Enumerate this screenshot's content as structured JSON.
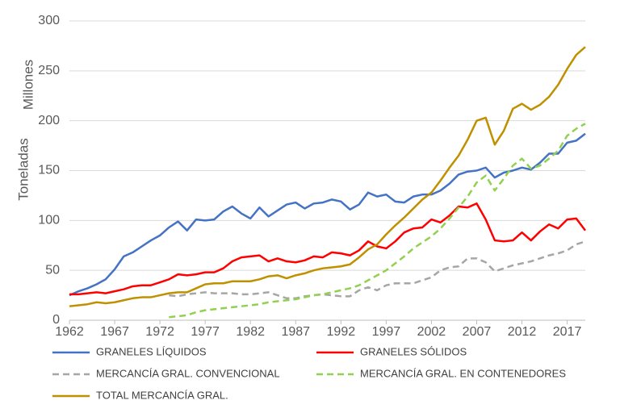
{
  "chart_data": {
    "type": "line",
    "y_label": "Toneladas",
    "y_unit": "Millones",
    "x": [
      1962,
      1963,
      1964,
      1965,
      1966,
      1967,
      1968,
      1969,
      1970,
      1971,
      1972,
      1973,
      1974,
      1975,
      1976,
      1977,
      1978,
      1979,
      1980,
      1981,
      1982,
      1983,
      1984,
      1985,
      1986,
      1987,
      1988,
      1989,
      1990,
      1991,
      1992,
      1993,
      1994,
      1995,
      1996,
      1997,
      1998,
      1999,
      2000,
      2001,
      2002,
      2003,
      2004,
      2005,
      2006,
      2007,
      2008,
      2009,
      2010,
      2011,
      2012,
      2013,
      2014,
      2015,
      2016,
      2017,
      2018,
      2019
    ],
    "xlim": [
      1962,
      2019
    ],
    "xticks": [
      1962,
      1967,
      1972,
      1977,
      1982,
      1987,
      1992,
      1997,
      2002,
      2007,
      2012,
      2017
    ],
    "ylim": [
      0,
      300
    ],
    "yticks": [
      0,
      50,
      100,
      150,
      200,
      250,
      300
    ],
    "grid": true,
    "series": [
      {
        "name": "GRANELES LÍQUIDOS",
        "color": "#4472c4",
        "dashed": false,
        "values": [
          25,
          29,
          32,
          36,
          41,
          51,
          64,
          68,
          74,
          80,
          85,
          93,
          99,
          90,
          101,
          100,
          101,
          109,
          114,
          107,
          102,
          113,
          104,
          110,
          116,
          118,
          112,
          117,
          118,
          121,
          119,
          111,
          116,
          128,
          124,
          126,
          119,
          118,
          124,
          126,
          126,
          130,
          137,
          146,
          149,
          150,
          153,
          143,
          148,
          150,
          153,
          151,
          158,
          167,
          167,
          178,
          180,
          187
        ]
      },
      {
        "name": "GRANELES SÓLIDOS",
        "color": "#ff0000",
        "dashed": false,
        "values": [
          26,
          26,
          27,
          28,
          27,
          29,
          31,
          34,
          35,
          35,
          38,
          41,
          46,
          45,
          46,
          48,
          48,
          52,
          59,
          63,
          64,
          65,
          59,
          62,
          59,
          58,
          60,
          64,
          63,
          68,
          67,
          65,
          70,
          79,
          74,
          72,
          79,
          88,
          92,
          93,
          101,
          98,
          105,
          114,
          113,
          117,
          101,
          80,
          79,
          80,
          88,
          80,
          89,
          96,
          92,
          101,
          102,
          90
        ]
      },
      {
        "name": "MERCANCÍA GRAL. CONVENCIONAL",
        "color": "#a6a6a6",
        "dashed": true,
        "values": [
          null,
          null,
          null,
          null,
          null,
          null,
          null,
          null,
          null,
          null,
          null,
          25,
          24,
          26,
          27,
          28,
          27,
          27,
          27,
          26,
          26,
          27,
          28,
          25,
          22,
          22,
          24,
          25,
          26,
          25,
          24,
          24,
          30,
          33,
          30,
          35,
          37,
          37,
          37,
          40,
          43,
          50,
          53,
          54,
          62,
          62,
          58,
          49,
          52,
          55,
          57,
          59,
          62,
          65,
          67,
          70,
          76,
          79
        ]
      },
      {
        "name": "MERCANCÍA GRAL. EN CONTENEDORES",
        "color": "#92d050",
        "dashed": true,
        "values": [
          null,
          null,
          null,
          null,
          null,
          null,
          null,
          null,
          null,
          null,
          null,
          3,
          4,
          5,
          8,
          10,
          11,
          12,
          13,
          14,
          15,
          16,
          18,
          19,
          20,
          21,
          23,
          25,
          26,
          28,
          30,
          32,
          35,
          40,
          45,
          50,
          57,
          64,
          72,
          78,
          84,
          92,
          102,
          113,
          124,
          138,
          145,
          130,
          142,
          155,
          162,
          152,
          155,
          162,
          170,
          185,
          192,
          197
        ]
      },
      {
        "name": "TOTAL MERCANCÍA GRAL.",
        "color": "#bf9000",
        "dashed": false,
        "values": [
          14,
          15,
          16,
          18,
          17,
          18,
          20,
          22,
          23,
          23,
          25,
          27,
          28,
          28,
          32,
          36,
          37,
          37,
          39,
          39,
          39,
          41,
          44,
          45,
          42,
          45,
          47,
          50,
          52,
          53,
          54,
          56,
          63,
          71,
          76,
          86,
          95,
          103,
          112,
          121,
          128,
          140,
          153,
          165,
          181,
          200,
          203,
          176,
          190,
          212,
          217,
          211,
          216,
          224,
          236,
          252,
          266,
          274
        ]
      }
    ]
  }
}
